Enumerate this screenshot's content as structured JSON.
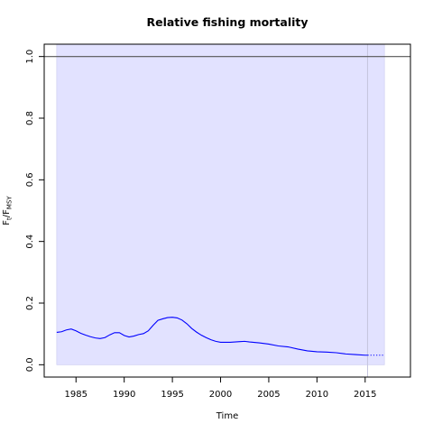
{
  "chart_data": {
    "type": "line",
    "title": "Relative fishing mortality",
    "xlabel": "Time",
    "ylabel": "F_t/F_MSY",
    "ylabel_main": "F",
    "ylabel_sub1": "t",
    "ylabel_slash": "/F",
    "ylabel_sub2": "MSY",
    "xlim": [
      1981.7,
      2019.7
    ],
    "ylim": [
      -0.04,
      1.04
    ],
    "x_ticks": [
      1985,
      1990,
      1995,
      2000,
      2005,
      2010,
      2015
    ],
    "x_tick_labels": [
      "1985",
      "1990",
      "1995",
      "2000",
      "2005",
      "2010",
      "2015"
    ],
    "y_ticks": [
      0.0,
      0.2,
      0.4,
      0.6,
      0.8,
      1.0
    ],
    "y_tick_labels": [
      "0.0",
      "0.2",
      "0.4",
      "0.6",
      "0.8",
      "1.0"
    ],
    "reference_line": {
      "y": 1.0,
      "color": "#555555"
    },
    "confidence_band": {
      "x_start": 1983.0,
      "x_end": 2017.0,
      "lower": 0.0,
      "upper": 1.04,
      "color": "#e2e2ff"
    },
    "last_data_marker": {
      "x": 2015.25,
      "color": "#c4c4dd"
    },
    "colors": {
      "series": "#0000ff",
      "frame": "#000000"
    },
    "series": [
      {
        "style": "solid",
        "x": [
          1983.0,
          1983.5,
          1984.0,
          1984.5,
          1985.0,
          1985.5,
          1986.0,
          1986.5,
          1987.0,
          1987.5,
          1988.0,
          1988.5,
          1989.0,
          1989.5,
          1990.0,
          1990.5,
          1991.0,
          1991.5,
          1992.0,
          1992.5,
          1993.0,
          1993.5,
          1994.0,
          1994.5,
          1995.0,
          1995.5,
          1996.0,
          1996.5,
          1997.0,
          1997.5,
          1998.0,
          1998.5,
          1999.0,
          1999.5,
          2000.0,
          2001.0,
          2002.0,
          2002.5,
          2003.0,
          2004.0,
          2005.0,
          2006.0,
          2007.0,
          2008.0,
          2009.0,
          2010.0,
          2011.0,
          2012.0,
          2013.0,
          2014.0,
          2015.0,
          2015.25
        ],
        "y": [
          0.105,
          0.107,
          0.113,
          0.116,
          0.11,
          0.102,
          0.096,
          0.091,
          0.087,
          0.085,
          0.088,
          0.097,
          0.104,
          0.104,
          0.095,
          0.09,
          0.093,
          0.098,
          0.101,
          0.11,
          0.128,
          0.144,
          0.149,
          0.153,
          0.154,
          0.152,
          0.145,
          0.133,
          0.118,
          0.106,
          0.096,
          0.088,
          0.081,
          0.076,
          0.073,
          0.073,
          0.075,
          0.076,
          0.074,
          0.071,
          0.067,
          0.061,
          0.058,
          0.051,
          0.045,
          0.042,
          0.041,
          0.039,
          0.035,
          0.033,
          0.031,
          0.031
        ]
      },
      {
        "style": "dotted",
        "x": [
          2015.25,
          2016.0,
          2017.0
        ],
        "y": [
          0.031,
          0.031,
          0.031
        ]
      }
    ]
  }
}
